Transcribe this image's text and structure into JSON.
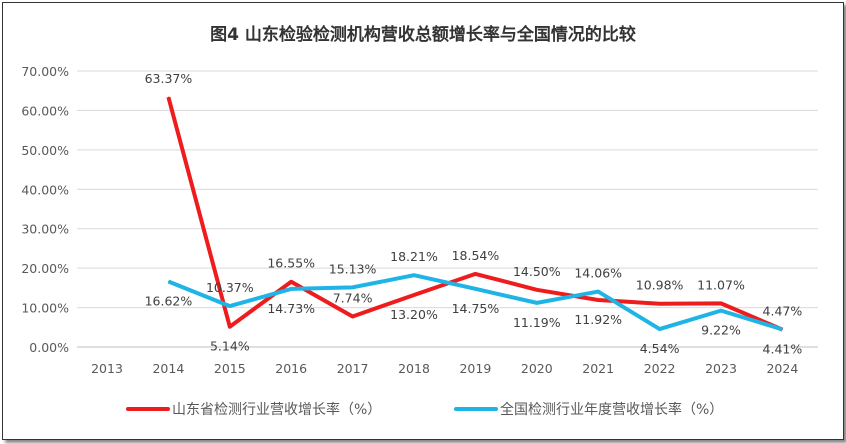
{
  "chart_data": {
    "type": "line",
    "title": "图4   山东检验检测机构营收总额增长率与全国情况的比较",
    "xlabel": "",
    "ylabel": "",
    "categories": [
      "2013",
      "2014",
      "2015",
      "2016",
      "2017",
      "2018",
      "2019",
      "2020",
      "2021",
      "2022",
      "2023",
      "2024"
    ],
    "ylim": [
      0,
      70
    ],
    "yticks": [
      "0.00%",
      "10.00%",
      "20.00%",
      "30.00%",
      "40.00%",
      "50.00%",
      "60.00%",
      "70.00%"
    ],
    "grid": true,
    "legend_position": "bottom",
    "series": [
      {
        "name": "山东省检测行业营收增长率（%）",
        "color": "#ee1c1c",
        "values": [
          null,
          63.37,
          5.14,
          16.55,
          7.74,
          13.2,
          18.54,
          14.5,
          11.92,
          10.98,
          11.07,
          4.41
        ],
        "labels": [
          "",
          "63.37%",
          "5.14%",
          "16.55%",
          "7.74%",
          "13.20%",
          "18.54%",
          "14.50%",
          "11.92%",
          "10.98%",
          "11.07%",
          "4.41%"
        ]
      },
      {
        "name": "全国检测行业年度营收增长率（%）",
        "color": "#1eb4e6",
        "values": [
          null,
          16.62,
          10.37,
          14.73,
          15.13,
          18.21,
          14.75,
          11.19,
          14.06,
          4.54,
          9.22,
          4.47
        ],
        "labels": [
          "",
          "16.62%",
          "10.37%",
          "14.73%",
          "15.13%",
          "18.21%",
          "14.75%",
          "11.19%",
          "14.06%",
          "4.54%",
          "9.22%",
          "4.47%"
        ]
      }
    ]
  }
}
